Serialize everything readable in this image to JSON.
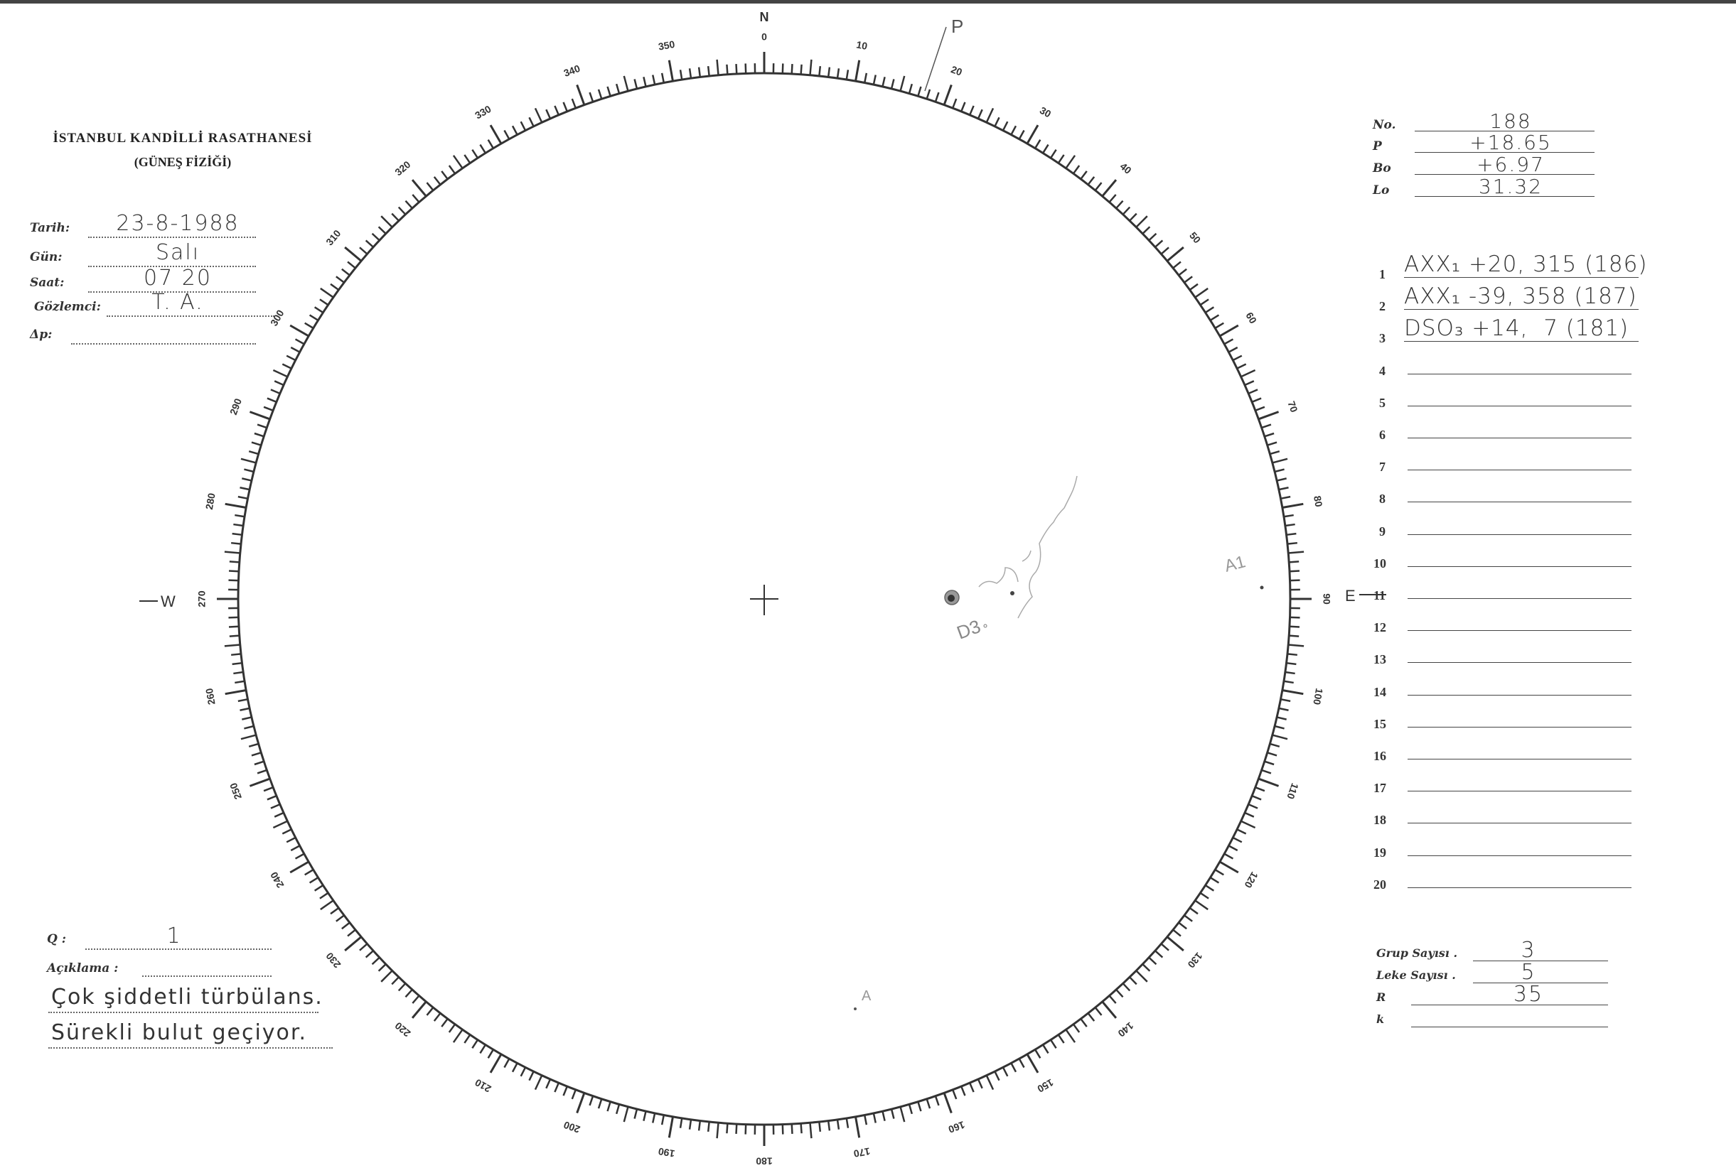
{
  "header": {
    "title": "İSTANBUL KANDİLLİ RASATHANESİ",
    "subtitle": "(GÜNEŞ FİZİĞİ)"
  },
  "fields": [
    {
      "label": "Tarih:",
      "value": "23-8-1988"
    },
    {
      "label": "Gün:",
      "value": "Salı"
    },
    {
      "label": "Saat:",
      "value": "07 20"
    },
    {
      "label": "Gözlemci:",
      "value": "T. A."
    },
    {
      "label": "Δp:",
      "value": ""
    }
  ],
  "params": [
    {
      "label": "No.",
      "value": "188"
    },
    {
      "label": "P",
      "value": "+18.65"
    },
    {
      "label": "Bo",
      "value": "+6.97"
    },
    {
      "label": "Lo",
      "value": "31.32"
    }
  ],
  "groups": [
    {
      "n": "1",
      "text": "AXX₁ +20, 315 (186)"
    },
    {
      "n": "2",
      "text": "AXX₁ -39, 358 (187)"
    },
    {
      "n": "3",
      "text": "DSO₃ +14,  7 (181)"
    },
    {
      "n": "4",
      "text": ""
    },
    {
      "n": "5",
      "text": ""
    },
    {
      "n": "6",
      "text": ""
    },
    {
      "n": "7",
      "text": ""
    },
    {
      "n": "8",
      "text": ""
    },
    {
      "n": "9",
      "text": ""
    },
    {
      "n": "10",
      "text": ""
    },
    {
      "n": "11",
      "text": ""
    },
    {
      "n": "12",
      "text": ""
    },
    {
      "n": "13",
      "text": ""
    },
    {
      "n": "14",
      "text": ""
    },
    {
      "n": "15",
      "text": ""
    },
    {
      "n": "16",
      "text": ""
    },
    {
      "n": "17",
      "text": ""
    },
    {
      "n": "18",
      "text": ""
    },
    {
      "n": "19",
      "text": ""
    },
    {
      "n": "20",
      "text": ""
    }
  ],
  "counts": [
    {
      "label": "Grup Sayısı .",
      "value": "3"
    },
    {
      "label": "Leke Sayısı .",
      "value": "5"
    },
    {
      "label": "R",
      "value": "35"
    },
    {
      "label": "k",
      "value": ""
    }
  ],
  "quality": {
    "label": "Q :",
    "value": "1"
  },
  "remarks": {
    "label": "Açıklama :",
    "lines": [
      "Çok şiddetli türbülans.",
      "Sürekli bulut geçiyor."
    ]
  },
  "disk": {
    "north": "N",
    "east": "E",
    "west": "W",
    "scale_labels": [
      "0",
      "10",
      "20",
      "30",
      "40",
      "50",
      "60",
      "70",
      "80",
      "90",
      "100",
      "110",
      "120",
      "130",
      "140",
      "150",
      "160",
      "170",
      "180",
      "190",
      "200",
      "210",
      "220",
      "230",
      "240",
      "250",
      "260",
      "270",
      "280",
      "290",
      "300",
      "310",
      "320",
      "330",
      "340",
      "350"
    ],
    "annotations": {
      "pole": "P",
      "group3": "D3",
      "group1": "A1",
      "group2": "A"
    }
  }
}
